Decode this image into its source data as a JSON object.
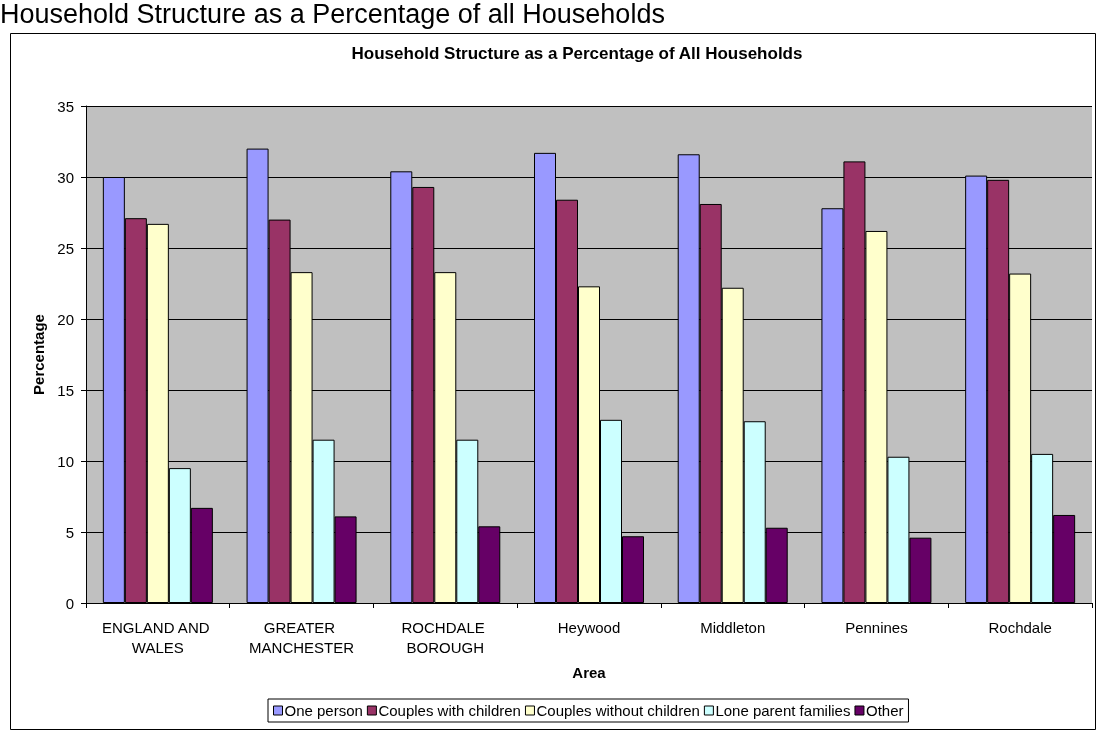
{
  "chart_data": {
    "type": "bar",
    "title": "Household Structure as a Percentage of All Households",
    "annotations": [
      "Household Structure as a Percentage of all Households"
    ],
    "xlabel": "Area",
    "ylabel": "Percentage",
    "categories": [
      "ENGLAND AND WALES",
      "GREATER MANCHESTER",
      "ROCHDALE BOROUGH",
      "Heywood",
      "Middleton",
      "Pennines",
      "Rochdale"
    ],
    "series": [
      {
        "name": "One person",
        "color": "#9999ff",
        "values": [
          30.0,
          32.0,
          30.4,
          31.7,
          31.6,
          27.8,
          30.1
        ]
      },
      {
        "name": "Couples with children",
        "color": "#993366",
        "values": [
          27.1,
          27.0,
          29.3,
          28.4,
          28.1,
          31.1,
          29.8
        ]
      },
      {
        "name": "Couples without children",
        "color": "#ffffcc",
        "values": [
          26.7,
          23.3,
          23.3,
          22.3,
          22.2,
          26.2,
          23.2
        ]
      },
      {
        "name": "Lone parent families",
        "color": "#ccffff",
        "values": [
          9.5,
          11.5,
          11.5,
          12.9,
          12.8,
          10.3,
          10.5
        ]
      },
      {
        "name": "Other",
        "color": "#660066",
        "values": [
          6.7,
          6.1,
          5.4,
          4.7,
          5.3,
          4.6,
          6.2
        ]
      }
    ],
    "ylim": [
      0,
      35
    ],
    "yticks": [
      0,
      5,
      10,
      15,
      20,
      25,
      30,
      35
    ],
    "grid": "y",
    "legend": "bottom"
  }
}
